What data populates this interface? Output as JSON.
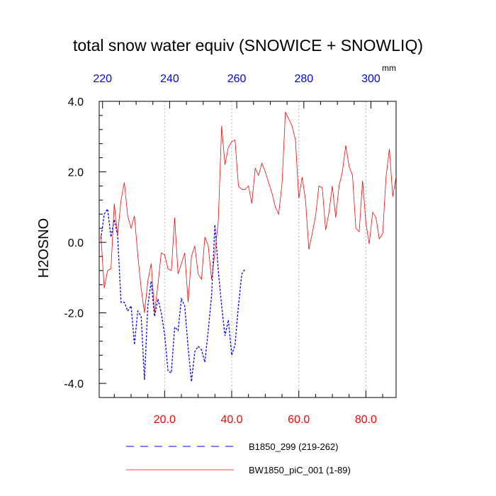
{
  "chart_data": {
    "type": "line",
    "title": "total snow water equiv (SNOWICE + SNOWLIQ)",
    "units": "mm",
    "ylabel": "H2OSNO",
    "xlabel": "",
    "xlim": [
      0.5,
      89
    ],
    "ylim": [
      -4.4,
      4.0
    ],
    "bottom_axis": {
      "color": "#ff0000",
      "ticks": [
        20,
        40,
        60,
        80
      ],
      "tick_labels": [
        "20.0",
        "40.0",
        "60.0",
        "80.0"
      ]
    },
    "top_axis": {
      "color": "#0000ff",
      "offset": 218.5,
      "ticks": [
        220,
        240,
        260,
        280,
        300
      ],
      "tick_labels": [
        "220",
        "240",
        "260",
        "280",
        "300"
      ]
    },
    "left_axis": {
      "ticks": [
        4.0,
        2.0,
        0.0,
        -2.0,
        -4.0
      ],
      "tick_labels": [
        "4.0",
        "2.0",
        "0.0",
        "-2.0",
        "-4.0"
      ]
    },
    "grid_x": [
      20,
      40,
      60,
      80
    ],
    "series": [
      {
        "name": "B1850_299 (219-262)",
        "color": "#0000ff",
        "dash": "dashed",
        "x": [
          1,
          2,
          3,
          4,
          5,
          6,
          7,
          8,
          9,
          10,
          11,
          12,
          13,
          14,
          15,
          16,
          17,
          18,
          19,
          20,
          21,
          22,
          23,
          24,
          25,
          26,
          27,
          28,
          29,
          30,
          31,
          32,
          33,
          34,
          35,
          36,
          37,
          38,
          39,
          40,
          41,
          42,
          43,
          44
        ],
        "values": [
          0.1,
          0.8,
          0.95,
          0.15,
          0.65,
          0.2,
          -1.7,
          -1.7,
          -1.95,
          -1.8,
          -2.9,
          -1.95,
          -2.1,
          -3.9,
          -1.8,
          -1.1,
          -2.1,
          -1.6,
          -2.0,
          -2.6,
          -3.65,
          -3.7,
          -2.4,
          -2.5,
          -1.6,
          -1.8,
          -3.0,
          -3.95,
          -3.1,
          -2.95,
          -3.05,
          -3.4,
          -2.5,
          -1.5,
          0.5,
          -0.8,
          -1.8,
          -2.65,
          -2.2,
          -3.2,
          -2.9,
          -1.8,
          -0.9,
          -0.75
        ]
      },
      {
        "name": "BW1850_piC_001 (1-89)",
        "color": "#ff0000",
        "dash": "solid",
        "x": [
          1,
          2,
          3,
          4,
          5,
          6,
          7,
          8,
          9,
          10,
          11,
          12,
          13,
          14,
          15,
          16,
          17,
          18,
          19,
          20,
          21,
          22,
          23,
          24,
          25,
          26,
          27,
          28,
          29,
          30,
          31,
          32,
          33,
          34,
          35,
          36,
          37,
          38,
          39,
          40,
          41,
          42,
          43,
          44,
          45,
          46,
          47,
          48,
          49,
          50,
          51,
          52,
          53,
          54,
          55,
          56,
          57,
          58,
          59,
          60,
          61,
          62,
          63,
          64,
          65,
          66,
          67,
          68,
          69,
          70,
          71,
          72,
          73,
          74,
          75,
          76,
          77,
          78,
          79,
          80,
          81,
          82,
          83,
          84,
          85,
          86,
          87,
          88,
          89
        ],
        "values": [
          0.2,
          -1.3,
          -0.8,
          -0.75,
          1.1,
          0.2,
          1.2,
          1.7,
          0.75,
          0.4,
          0.75,
          -0.35,
          -1.3,
          -2.0,
          -1.1,
          -0.6,
          -2.0,
          -1.2,
          -0.3,
          -0.35,
          -0.75,
          -0.8,
          0.7,
          -0.9,
          -0.6,
          -0.3,
          -1.7,
          -0.4,
          -0.1,
          -0.9,
          -1.05,
          0.15,
          -0.1,
          -1.05,
          -0.3,
          0.6,
          3.3,
          2.2,
          2.7,
          2.85,
          2.9,
          1.6,
          1.5,
          1.5,
          1.6,
          1.1,
          2.1,
          1.9,
          2.25,
          2.0,
          1.7,
          1.4,
          1.0,
          0.8,
          1.65,
          3.7,
          3.5,
          3.3,
          2.9,
          1.25,
          1.85,
          1.2,
          -0.2,
          0.25,
          0.75,
          1.6,
          1.55,
          0.35,
          0.85,
          1.6,
          0.7,
          1.6,
          2.0,
          2.75,
          2.15,
          1.9,
          0.4,
          0.3,
          1.75,
          0.55,
          -0.05,
          0.85,
          0.7,
          0.1,
          0.25,
          1.85,
          2.65,
          1.3,
          1.85
        ]
      }
    ],
    "legend": {
      "position": "bottom",
      "entries": [
        "B1850_299 (219-262)",
        "BW1850_piC_001 (1-89)"
      ]
    }
  }
}
